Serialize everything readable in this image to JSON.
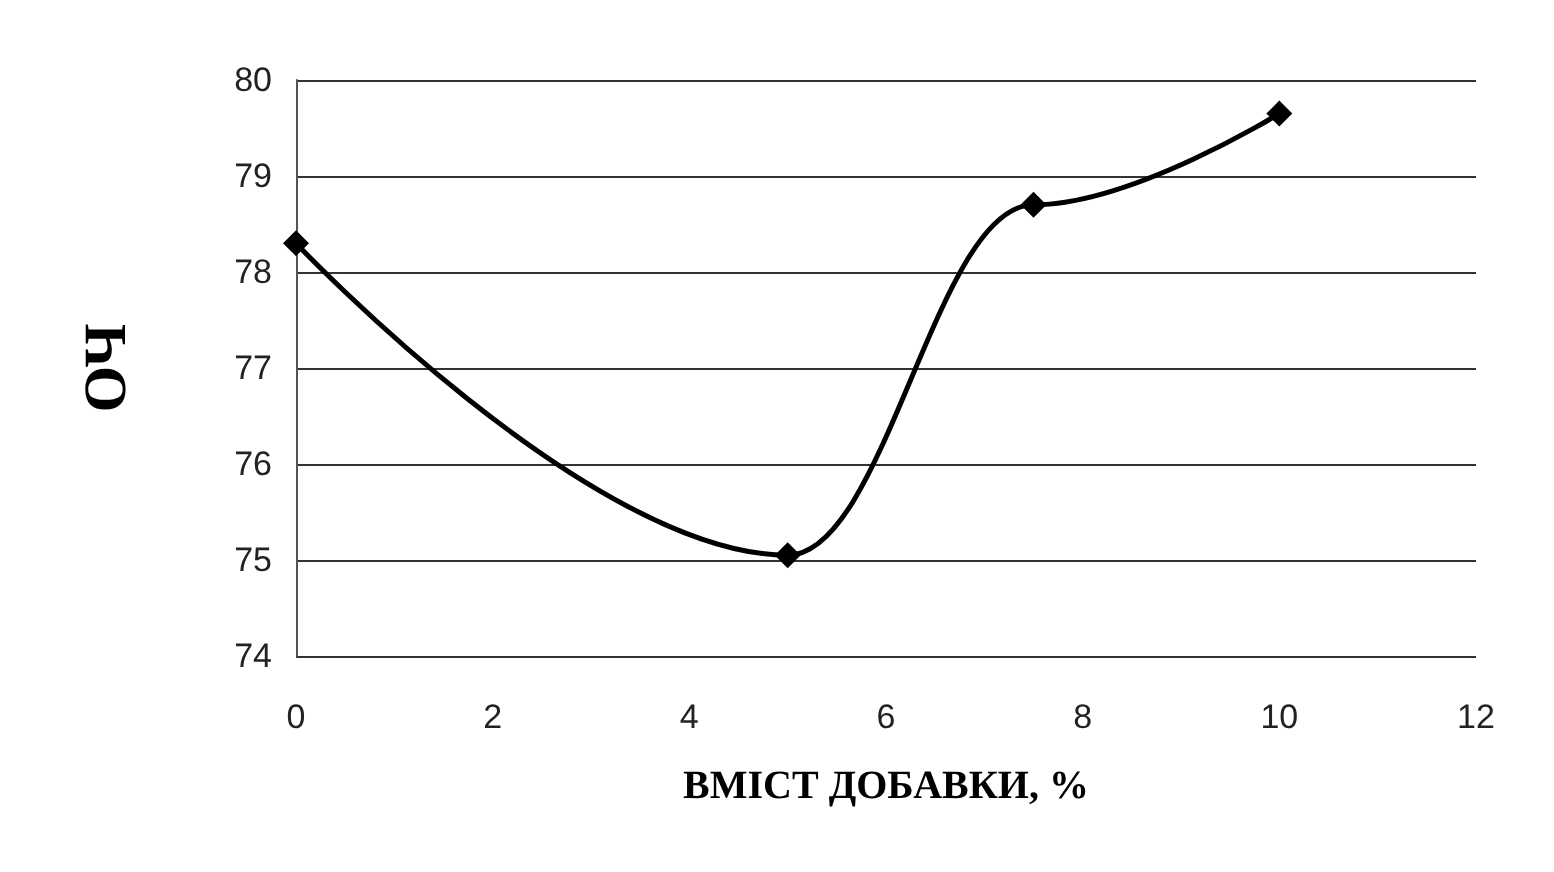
{
  "chart_data": {
    "type": "line",
    "xlabel": "ВМІСТ ДОБАВКИ, %",
    "ylabel": "ОЧ",
    "x": [
      0,
      5,
      7.5,
      10
    ],
    "series": [
      {
        "color": "#000000",
        "values": [
          78.3,
          75.05,
          78.7,
          79.65
        ]
      }
    ],
    "xlim": [
      0,
      12
    ],
    "xticks": [
      0,
      2,
      4,
      6,
      8,
      10,
      12
    ],
    "ylim": [
      74,
      80
    ],
    "yticks": [
      74,
      75,
      76,
      77,
      78,
      79,
      80
    ],
    "grid": "y",
    "marker": "diamond",
    "line_style": "solid"
  }
}
